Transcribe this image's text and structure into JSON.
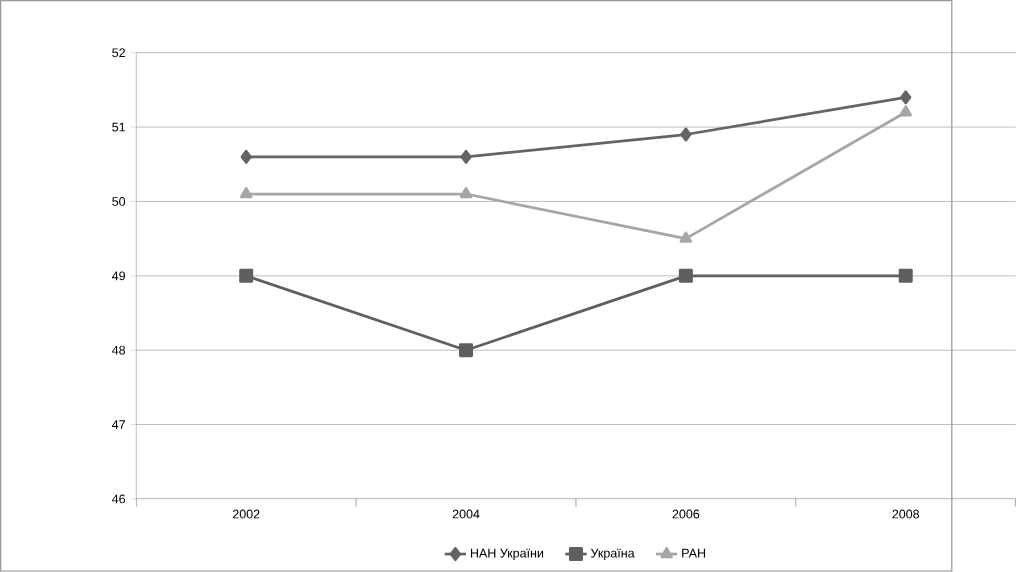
{
  "chart_data": {
    "type": "line",
    "categories": [
      "2002",
      "2004",
      "2006",
      "2008"
    ],
    "series": [
      {
        "name": "НАН України",
        "color": "#646464",
        "marker": "diamond",
        "values": [
          50.6,
          50.6,
          50.9,
          51.4
        ]
      },
      {
        "name": "Україна",
        "color": "#5f5f5f",
        "marker": "square",
        "values": [
          49,
          48,
          49,
          49
        ]
      },
      {
        "name": "РАН",
        "color": "#a6a6a6",
        "marker": "triangle",
        "values": [
          50.1,
          50.1,
          49.5,
          51.2
        ]
      }
    ],
    "ylim": [
      46,
      52
    ],
    "yticks": [
      46,
      47,
      48,
      49,
      50,
      51,
      52
    ],
    "grid": "y",
    "legend": "bottom",
    "line_style": "solid"
  }
}
